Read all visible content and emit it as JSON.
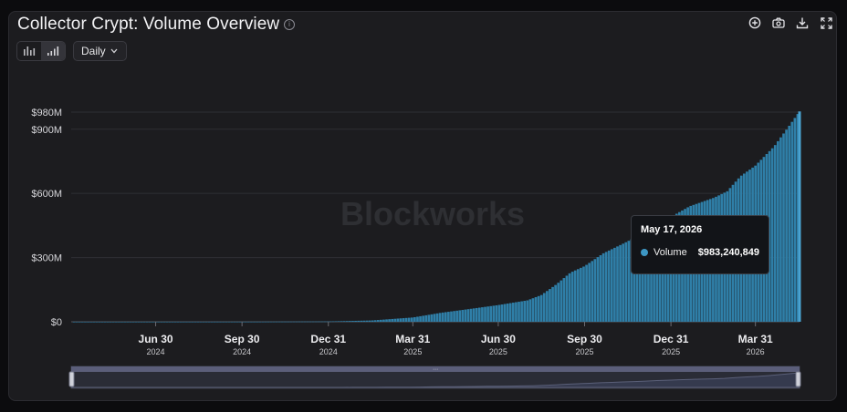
{
  "header": {
    "title": "Collector Crypt: Volume Overview",
    "info_icon": "info-icon",
    "interval": "Daily",
    "chart_type_toggle": [
      "bar-chart-icon",
      "bar-chart-ascending-icon"
    ],
    "tools": [
      "zoom-in-icon",
      "camera-icon",
      "download-icon",
      "fullscreen-icon"
    ]
  },
  "watermark": "Blockworks",
  "tooltip": {
    "date": "May 17, 2026",
    "series": "Volume",
    "value": "$983,240,849"
  },
  "colors": {
    "bar": "#2f7fa8",
    "bar_highlight": "#4aa3d2",
    "background": "#1c1c1f",
    "accent": "#3d97c4"
  },
  "chart_data": {
    "type": "bar",
    "title": "Collector Crypt: Volume Overview",
    "xlabel": "",
    "ylabel": "",
    "ylim": [
      0,
      980000000
    ],
    "yticks": [
      {
        "value": 0,
        "label": "$0"
      },
      {
        "value": 300000000,
        "label": "$300M"
      },
      {
        "value": 600000000,
        "label": "$600M"
      },
      {
        "value": 900000000,
        "label": "$900M"
      },
      {
        "value": 980000000,
        "label": "$980M"
      }
    ],
    "xticks": [
      {
        "date": "2024-06-30",
        "label": "Jun 30",
        "sublabel": "2024"
      },
      {
        "date": "2024-09-30",
        "label": "Sep 30",
        "sublabel": "2024"
      },
      {
        "date": "2024-12-31",
        "label": "Dec 31",
        "sublabel": "2024"
      },
      {
        "date": "2025-03-31",
        "label": "Mar 31",
        "sublabel": "2025"
      },
      {
        "date": "2025-06-30",
        "label": "Jun 30",
        "sublabel": "2025"
      },
      {
        "date": "2025-09-30",
        "label": "Sep 30",
        "sublabel": "2025"
      },
      {
        "date": "2025-12-31",
        "label": "Dec 31",
        "sublabel": "2025"
      },
      {
        "date": "2026-03-31",
        "label": "Mar 31",
        "sublabel": "2026"
      }
    ],
    "x_range": [
      "2024-04-01",
      "2026-05-17"
    ],
    "grid": "horizontal",
    "series": [
      {
        "name": "Volume",
        "points": [
          [
            "2024-04-01",
            0
          ],
          [
            "2024-10-15",
            300000
          ],
          [
            "2024-12-31",
            1500000
          ],
          [
            "2025-02-15",
            6000000
          ],
          [
            "2025-03-31",
            20000000
          ],
          [
            "2025-04-30",
            42000000
          ],
          [
            "2025-05-31",
            60000000
          ],
          [
            "2025-06-30",
            78000000
          ],
          [
            "2025-07-31",
            100000000
          ],
          [
            "2025-08-15",
            125000000
          ],
          [
            "2025-08-31",
            175000000
          ],
          [
            "2025-09-15",
            230000000
          ],
          [
            "2025-09-30",
            260000000
          ],
          [
            "2025-10-20",
            320000000
          ],
          [
            "2025-11-10",
            365000000
          ],
          [
            "2025-11-30",
            410000000
          ],
          [
            "2025-12-20",
            470000000
          ],
          [
            "2025-12-31",
            490000000
          ],
          [
            "2026-01-20",
            540000000
          ],
          [
            "2026-02-15",
            580000000
          ],
          [
            "2026-03-01",
            610000000
          ],
          [
            "2026-03-15",
            680000000
          ],
          [
            "2026-03-31",
            730000000
          ],
          [
            "2026-04-20",
            820000000
          ],
          [
            "2026-05-05",
            910000000
          ],
          [
            "2026-05-17",
            983240849
          ]
        ]
      }
    ],
    "highlight": {
      "date": "2026-05-17",
      "value": 983240849
    }
  }
}
